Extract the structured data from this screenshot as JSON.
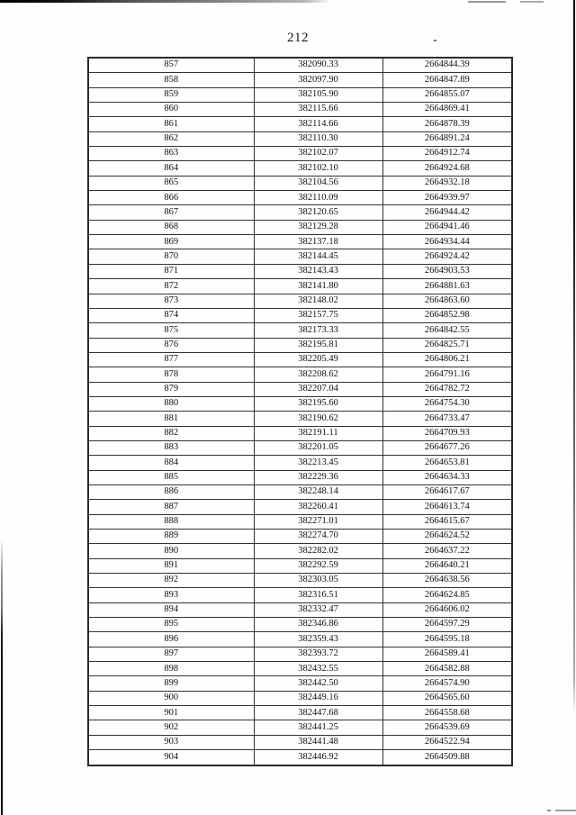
{
  "page": {
    "number": "212"
  },
  "table": {
    "rows": [
      [
        "857",
        "382090.33",
        "2664844.39"
      ],
      [
        "858",
        "382097.90",
        "2664847.89"
      ],
      [
        "859",
        "382105.90",
        "2664855.07"
      ],
      [
        "860",
        "382115.66",
        "2664869.41"
      ],
      [
        "861",
        "382114.66",
        "2664878.39"
      ],
      [
        "862",
        "382110.30",
        "2664891.24"
      ],
      [
        "863",
        "382102.07",
        "2664912.74"
      ],
      [
        "864",
        "382102.10",
        "2664924.68"
      ],
      [
        "865",
        "382104.56",
        "2664932.18"
      ],
      [
        "866",
        "382110.09",
        "2664939.97"
      ],
      [
        "867",
        "382120.65",
        "2664944.42"
      ],
      [
        "868",
        "382129.28",
        "2664941.46"
      ],
      [
        "869",
        "382137.18",
        "2664934.44"
      ],
      [
        "870",
        "382144.45",
        "2664924.42"
      ],
      [
        "871",
        "382143.43",
        "2664903.53"
      ],
      [
        "872",
        "382141.80",
        "2664881.63"
      ],
      [
        "873",
        "382148.02",
        "2664863.60"
      ],
      [
        "874",
        "382157.75",
        "2664852.98"
      ],
      [
        "875",
        "382173.33",
        "2664842.55"
      ],
      [
        "876",
        "382195.81",
        "2664825.71"
      ],
      [
        "877",
        "382205.49",
        "2664806.21"
      ],
      [
        "878",
        "382208.62",
        "2664791.16"
      ],
      [
        "879",
        "382207.04",
        "2664782.72"
      ],
      [
        "880",
        "382195.60",
        "2664754.30"
      ],
      [
        "881",
        "382190.62",
        "2664733.47"
      ],
      [
        "882",
        "382191.11",
        "2664709.93"
      ],
      [
        "883",
        "382201.05",
        "2664677.26"
      ],
      [
        "884",
        "382213.45",
        "2664653.81"
      ],
      [
        "885",
        "382229.36",
        "2664634.33"
      ],
      [
        "886",
        "382248.14",
        "2664617.67"
      ],
      [
        "887",
        "382260.41",
        "2664613.74"
      ],
      [
        "888",
        "382271.01",
        "2664615.67"
      ],
      [
        "889",
        "382274.70",
        "2664624.52"
      ],
      [
        "890",
        "382282.02",
        "2664637.22"
      ],
      [
        "891",
        "382292.59",
        "2664640.21"
      ],
      [
        "892",
        "382303.05",
        "2664638.56"
      ],
      [
        "893",
        "382316.51",
        "2664624.85"
      ],
      [
        "894",
        "382332.47",
        "2664606.02"
      ],
      [
        "895",
        "382346.86",
        "2664597.29"
      ],
      [
        "896",
        "382359.43",
        "2664595.18"
      ],
      [
        "897",
        "382393.72",
        "2664589.41"
      ],
      [
        "898",
        "382432.55",
        "2664582.88"
      ],
      [
        "899",
        "382442.50",
        "2664574.90"
      ],
      [
        "900",
        "382449.16",
        "2664565.60"
      ],
      [
        "901",
        "382447.68",
        "2664558.68"
      ],
      [
        "902",
        "382441.25",
        "2664539.69"
      ],
      [
        "903",
        "382441.48",
        "2664522.94"
      ],
      [
        "904",
        "382446.92",
        "2664509.88"
      ]
    ]
  }
}
